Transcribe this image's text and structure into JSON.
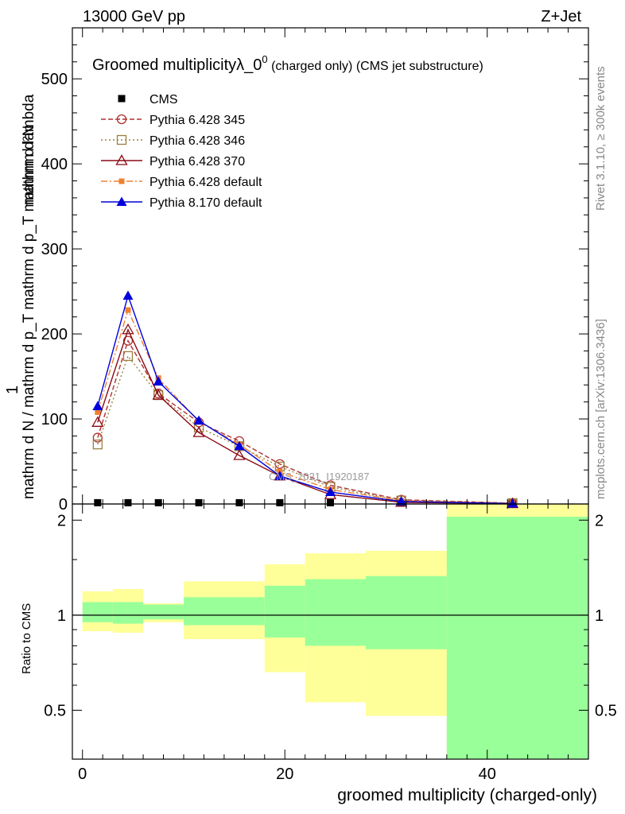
{
  "header": {
    "energy_label": "13000 GeV pp",
    "process_label": "Z+Jet",
    "rivet_label": "Rivet 3.1.10, ≥ 300k events",
    "source_label": "mcplots.cern.ch [arXiv:1306.3436]",
    "watermark": "CMS_2021_I1920187"
  },
  "colors": {
    "CMS": "#000000",
    "Pythia 6.428 345": "#b03030",
    "Pythia 6.428 346": "#9a8040",
    "Pythia 6.428 370": "#8b0a14",
    "Pythia 6.428 default": "#f08030",
    "Pythia 8.170 default": "#0000dd",
    "band_stat": "#99ff99",
    "band_total": "#ffff99"
  },
  "chart_data": [
    {
      "type": "line",
      "title_main": "Groomed multiplicityλ_0",
      "title_sup": "0",
      "title_tail": " (charged only) (CMS jet substructure)",
      "ylabel_top": "1",
      "ylabel_bottom": "mathrm d N / mathrm d p_T mathrm d p_T mathrm d lambda",
      "ylabel_numerator": "mathrm d²N",
      "ylim": [
        0,
        560
      ],
      "yticks": [
        0,
        100,
        200,
        300,
        400,
        500
      ],
      "xlim": [
        -1,
        50
      ],
      "x": [
        1.5,
        4.5,
        7.5,
        11.5,
        15.5,
        19.5,
        24.5,
        31.5,
        42.5
      ],
      "series": [
        {
          "name": "CMS",
          "marker": "square-filled",
          "dash": "none",
          "values": [
            1.5,
            1.5,
            1.5,
            1.5,
            1.5,
            1.5,
            1.5,
            1.0,
            0.5
          ]
        },
        {
          "name": "Pythia 6.428 345",
          "marker": "circle-open",
          "dash": "6,3",
          "values": [
            78,
            192,
            130,
            96,
            74,
            47,
            22,
            5,
            1
          ]
        },
        {
          "name": "Pythia 6.428 346",
          "marker": "square-open",
          "dash": "2,3",
          "values": [
            70,
            174,
            128,
            90,
            68,
            44,
            20,
            4,
            1
          ]
        },
        {
          "name": "Pythia 6.428 370",
          "marker": "triangle-open",
          "dash": "none",
          "values": [
            96,
            205,
            128,
            84,
            57,
            33,
            11,
            2,
            0.5
          ]
        },
        {
          "name": "Pythia 6.428 default",
          "marker": "square-filled-small",
          "dash": "8,3,2,3",
          "values": [
            108,
            228,
            148,
            97,
            70,
            38,
            17,
            4,
            1
          ]
        },
        {
          "name": "Pythia 8.170 default",
          "marker": "triangle-filled",
          "dash": "none",
          "values": [
            115,
            245,
            144,
            98,
            68,
            33,
            14,
            3,
            0.5
          ]
        }
      ]
    },
    {
      "type": "area",
      "ylabel": "Ratio to CMS",
      "xlabel": "groomed multiplicity (charged-only)",
      "ylim": [
        0.35,
        2.25
      ],
      "yticks": [
        0.5,
        1,
        2
      ],
      "xticks": [
        0,
        20,
        40
      ],
      "reference": 1,
      "bins": [
        {
          "lo": 0,
          "hi": 3,
          "stat": [
            0.95,
            1.1
          ],
          "total": [
            0.89,
            1.19
          ]
        },
        {
          "lo": 3,
          "hi": 6,
          "stat": [
            0.94,
            1.1
          ],
          "total": [
            0.88,
            1.21
          ]
        },
        {
          "lo": 6,
          "hi": 10,
          "stat": [
            0.97,
            1.08
          ],
          "total": [
            0.95,
            1.09
          ]
        },
        {
          "lo": 10,
          "hi": 18,
          "stat": [
            0.93,
            1.14
          ],
          "total": [
            0.84,
            1.28
          ]
        },
        {
          "lo": 18,
          "hi": 22,
          "stat": [
            0.85,
            1.24
          ],
          "total": [
            0.66,
            1.45
          ]
        },
        {
          "lo": 22,
          "hi": 28,
          "stat": [
            0.8,
            1.3
          ],
          "total": [
            0.53,
            1.57
          ]
        },
        {
          "lo": 28,
          "hi": 36,
          "stat": [
            0.78,
            1.33
          ],
          "total": [
            0.48,
            1.6
          ]
        },
        {
          "lo": 36,
          "hi": 50,
          "stat": [
            0.3,
            2.05
          ],
          "total": [
            0.3,
            2.5
          ]
        }
      ]
    }
  ]
}
